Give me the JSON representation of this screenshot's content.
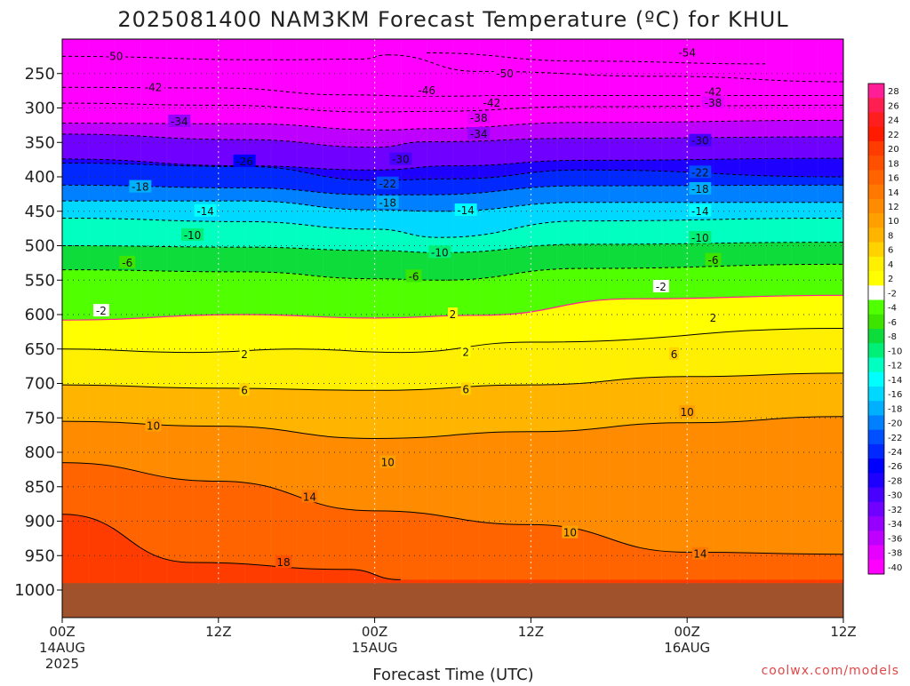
{
  "title": "2025081400 NAM3KM Forecast Temperature (ºC) for KHUL",
  "credit": "coolwx.com/models",
  "chart_data": {
    "type": "heatmap",
    "title": "2025081400 NAM3KM Forecast Temperature (ºC) for KHUL",
    "xlabel": "Forecast Time (UTC)",
    "ylabel": "",
    "x_axis": {
      "range_hours": [
        0,
        60
      ],
      "ticks": [
        {
          "hour": 0,
          "label": "00Z",
          "sub1": "14AUG",
          "sub2": "2025"
        },
        {
          "hour": 12,
          "label": "12Z",
          "sub1": "",
          "sub2": ""
        },
        {
          "hour": 24,
          "label": "00Z",
          "sub1": "15AUG",
          "sub2": ""
        },
        {
          "hour": 36,
          "label": "12Z",
          "sub1": "",
          "sub2": ""
        },
        {
          "hour": 48,
          "label": "00Z",
          "sub1": "16AUG",
          "sub2": ""
        },
        {
          "hour": 60,
          "label": "12Z",
          "sub1": "",
          "sub2": ""
        }
      ]
    },
    "y_axis": {
      "label": "",
      "range_hPa": [
        1040,
        200
      ],
      "ticks": [
        250,
        300,
        350,
        400,
        450,
        500,
        550,
        600,
        650,
        700,
        750,
        800,
        850,
        900,
        950,
        1000
      ]
    },
    "surface_pressure_hPa": 990,
    "colorbar": {
      "levels": [
        28,
        26,
        24,
        22,
        20,
        18,
        16,
        14,
        12,
        10,
        8,
        6,
        4,
        2,
        -2,
        -4,
        -6,
        -8,
        -10,
        -12,
        -14,
        -16,
        -18,
        -20,
        -22,
        -24,
        -26,
        -28,
        -30,
        -32,
        -34,
        -36,
        -38,
        -40
      ],
      "colors": [
        "#ff1e96",
        "#ff1e50",
        "#ff1e1e",
        "#ff1a00",
        "#ff3c00",
        "#ff5000",
        "#ff6400",
        "#ff7800",
        "#ff8c00",
        "#ffa000",
        "#ffb400",
        "#ffd200",
        "#ffef00",
        "#ffff00",
        "#ffffff",
        "#50ff00",
        "#3ce400",
        "#0edc3b",
        "#00f077",
        "#00ffc0",
        "#00ffff",
        "#00d8ff",
        "#00b0ff",
        "#0080ff",
        "#0050ff",
        "#0028ff",
        "#0000ff",
        "#1e00ff",
        "#4800ff",
        "#7000ff",
        "#9600ff",
        "#be00ff",
        "#e600ff",
        "#ff00ff"
      ]
    },
    "isotherms": [
      {
        "value": -54,
        "label": "-54",
        "points": [
          [
            28,
            220
          ],
          [
            40,
            232
          ],
          [
            54,
            236
          ]
        ]
      },
      {
        "value": -50,
        "label": "-50",
        "points": [
          [
            0,
            225
          ],
          [
            16,
            230
          ],
          [
            23,
            229
          ],
          [
            25,
            223
          ]
        ]
      },
      {
        "value": -50,
        "label": "-50",
        "points": [
          [
            25,
            223
          ],
          [
            32,
            247
          ],
          [
            46,
            254
          ],
          [
            60,
            262
          ]
        ]
      },
      {
        "value": -46,
        "label": "-46",
        "points": [
          [
            0,
            270
          ],
          [
            12,
            271
          ],
          [
            22,
            281
          ],
          [
            28,
            283
          ],
          [
            36,
            282
          ],
          [
            60,
            282
          ]
        ]
      },
      {
        "value": -42,
        "label": "-42",
        "points": [
          [
            0,
            293
          ],
          [
            12,
            296
          ],
          [
            24,
            306
          ],
          [
            28,
            305
          ],
          [
            40,
            298
          ],
          [
            60,
            296
          ]
        ]
      },
      {
        "value": -38,
        "label": "-38",
        "points": [
          [
            0,
            322
          ],
          [
            14,
            323
          ],
          [
            25,
            332
          ],
          [
            28,
            330
          ],
          [
            40,
            321
          ],
          [
            60,
            318
          ]
        ]
      },
      {
        "value": -34,
        "label": "-34",
        "points": [
          [
            0,
            338
          ],
          [
            14,
            346
          ],
          [
            24,
            357
          ],
          [
            28,
            349
          ],
          [
            40,
            344
          ],
          [
            60,
            342
          ]
        ]
      },
      {
        "value": -30,
        "label": "-30",
        "points": [
          [
            0,
            374
          ],
          [
            14,
            384
          ],
          [
            24,
            390
          ],
          [
            30,
            384
          ],
          [
            40,
            376
          ],
          [
            60,
            373
          ]
        ]
      },
      {
        "value": -26,
        "label": "-26",
        "points": [
          [
            0,
            380
          ],
          [
            14,
            385
          ],
          [
            24,
            405
          ],
          [
            30,
            403
          ],
          [
            40,
            390
          ],
          [
            60,
            400
          ]
        ]
      },
      {
        "value": -22,
        "label": "-22",
        "points": [
          [
            0,
            412
          ],
          [
            14,
            416
          ],
          [
            24,
            426
          ],
          [
            28,
            426
          ],
          [
            40,
            413
          ],
          [
            60,
            412
          ]
        ]
      },
      {
        "value": -18,
        "label": "-18",
        "points": [
          [
            0,
            435
          ],
          [
            14,
            435
          ],
          [
            24,
            448
          ],
          [
            29,
            450
          ],
          [
            40,
            437
          ],
          [
            60,
            437
          ]
        ]
      },
      {
        "value": -14,
        "label": "-14",
        "points": [
          [
            0,
            460
          ],
          [
            14,
            465
          ],
          [
            24,
            476
          ],
          [
            29,
            488
          ],
          [
            40,
            464
          ],
          [
            60,
            460
          ]
        ]
      },
      {
        "value": -10,
        "label": "-10",
        "points": [
          [
            0,
            500
          ],
          [
            14,
            502
          ],
          [
            24,
            507
          ],
          [
            29,
            510
          ],
          [
            40,
            498
          ],
          [
            60,
            495
          ]
        ]
      },
      {
        "value": -6,
        "label": "-6",
        "points": [
          [
            0,
            535
          ],
          [
            14,
            538
          ],
          [
            24,
            548
          ],
          [
            29,
            550
          ],
          [
            40,
            533
          ],
          [
            60,
            527
          ]
        ]
      },
      {
        "value": -2,
        "label": "-2",
        "points": [
          [
            0,
            608
          ],
          [
            14,
            600
          ],
          [
            24,
            605
          ],
          [
            32,
            601
          ],
          [
            44,
            577
          ],
          [
            60,
            572
          ]
        ]
      },
      {
        "value": 2,
        "label": "2",
        "points": [
          [
            0,
            650
          ],
          [
            10,
            655
          ],
          [
            18,
            650
          ],
          [
            26,
            655
          ],
          [
            36,
            640
          ],
          [
            60,
            620
          ]
        ]
      },
      {
        "value": 6,
        "label": "6",
        "points": [
          [
            0,
            702
          ],
          [
            12,
            707
          ],
          [
            24,
            710
          ],
          [
            36,
            702
          ],
          [
            48,
            690
          ],
          [
            60,
            685
          ]
        ]
      },
      {
        "value": 10,
        "label": "10",
        "points": [
          [
            0,
            755
          ],
          [
            12,
            762
          ],
          [
            24,
            780
          ],
          [
            36,
            770
          ],
          [
            48,
            757
          ],
          [
            60,
            748
          ]
        ]
      },
      {
        "value": 14,
        "label": "14",
        "points": [
          [
            0,
            815
          ],
          [
            12,
            842
          ],
          [
            24,
            885
          ],
          [
            36,
            905
          ],
          [
            48,
            945
          ],
          [
            60,
            948
          ]
        ]
      },
      {
        "value": 18,
        "label": "18",
        "points": [
          [
            0,
            890
          ],
          [
            10,
            960
          ],
          [
            22,
            970
          ],
          [
            26,
            985
          ]
        ]
      }
    ],
    "isotherm_labels": [
      {
        "text": "-50",
        "hour": 4,
        "hPa": 225
      },
      {
        "text": "-54",
        "hour": 48,
        "hPa": 220
      },
      {
        "text": "-50",
        "hour": 34,
        "hPa": 250
      },
      {
        "text": "-42",
        "hour": 7,
        "hPa": 270
      },
      {
        "text": "-46",
        "hour": 28,
        "hPa": 275
      },
      {
        "text": "-42",
        "hour": 33,
        "hPa": 293
      },
      {
        "text": "-42",
        "hour": 50,
        "hPa": 277
      },
      {
        "text": "-38",
        "hour": 32,
        "hPa": 315
      },
      {
        "text": "-38",
        "hour": 50,
        "hPa": 293
      },
      {
        "text": "-34",
        "hour": 9,
        "hPa": 320
      },
      {
        "text": "-34",
        "hour": 32,
        "hPa": 338
      },
      {
        "text": "-30",
        "hour": 26,
        "hPa": 375
      },
      {
        "text": "-30",
        "hour": 49,
        "hPa": 348
      },
      {
        "text": "-26",
        "hour": 14,
        "hPa": 378
      },
      {
        "text": "-22",
        "hour": 25,
        "hPa": 410
      },
      {
        "text": "-22",
        "hour": 49,
        "hPa": 394
      },
      {
        "text": "-18",
        "hour": 6,
        "hPa": 415
      },
      {
        "text": "-18",
        "hour": 25,
        "hPa": 438
      },
      {
        "text": "-18",
        "hour": 49,
        "hPa": 418
      },
      {
        "text": "-14",
        "hour": 11,
        "hPa": 450
      },
      {
        "text": "-14",
        "hour": 31,
        "hPa": 449
      },
      {
        "text": "-14",
        "hour": 49,
        "hPa": 450
      },
      {
        "text": "-10",
        "hour": 10,
        "hPa": 485
      },
      {
        "text": "-10",
        "hour": 29,
        "hPa": 510
      },
      {
        "text": "-10",
        "hour": 49,
        "hPa": 489
      },
      {
        "text": "-6",
        "hour": 5,
        "hPa": 525
      },
      {
        "text": "-6",
        "hour": 27,
        "hPa": 545
      },
      {
        "text": "-6",
        "hour": 50,
        "hPa": 521
      },
      {
        "text": "-2",
        "hour": 3,
        "hPa": 595
      },
      {
        "text": "-2",
        "hour": 46,
        "hPa": 560
      },
      {
        "text": "2",
        "hour": 30,
        "hPa": 600
      },
      {
        "text": "2",
        "hour": 50,
        "hPa": 605
      },
      {
        "text": "2",
        "hour": 14,
        "hPa": 658
      },
      {
        "text": "2",
        "hour": 31,
        "hPa": 655
      },
      {
        "text": "6",
        "hour": 14,
        "hPa": 710
      },
      {
        "text": "6",
        "hour": 31,
        "hPa": 709
      },
      {
        "text": "6",
        "hour": 47,
        "hPa": 658
      },
      {
        "text": "10",
        "hour": 7,
        "hPa": 762
      },
      {
        "text": "10",
        "hour": 25,
        "hPa": 815
      },
      {
        "text": "10",
        "hour": 48,
        "hPa": 742
      },
      {
        "text": "10",
        "hour": 39,
        "hPa": 917
      },
      {
        "text": "14",
        "hour": 19,
        "hPa": 865
      },
      {
        "text": "14",
        "hour": 49,
        "hPa": 948
      },
      {
        "text": "18",
        "hour": 17,
        "hPa": 960
      }
    ]
  }
}
